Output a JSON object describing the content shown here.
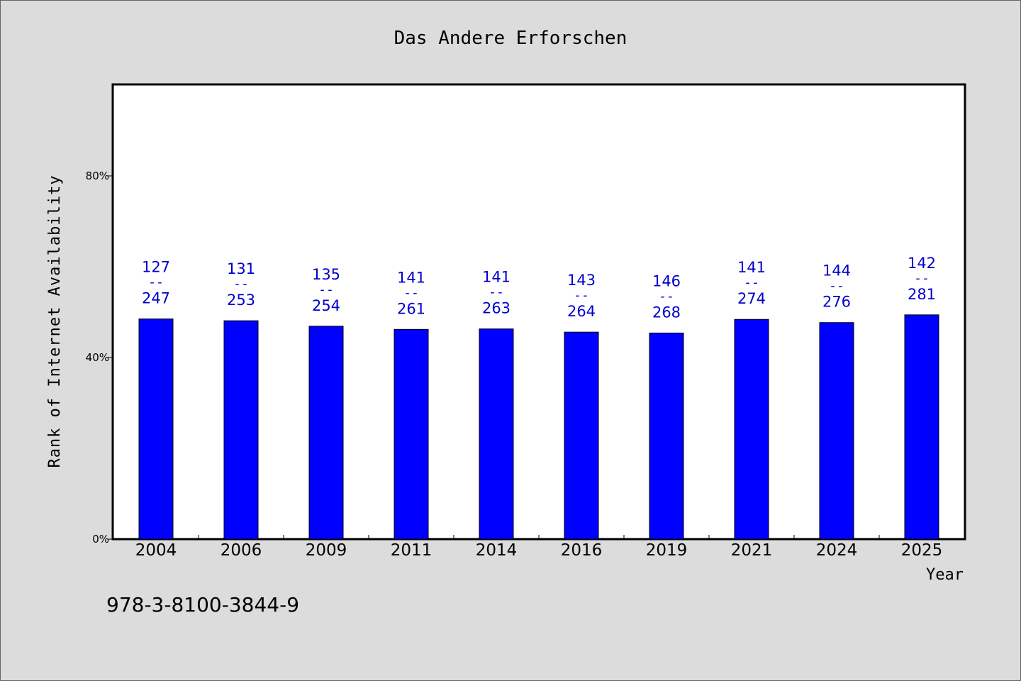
{
  "chart_data": {
    "type": "bar",
    "title": "Das Andere Erforschen",
    "xlabel": "Year",
    "ylabel": "Rank of Internet Availability",
    "categories": [
      "2004",
      "2006",
      "2009",
      "2011",
      "2014",
      "2016",
      "2019",
      "2021",
      "2024",
      "2025"
    ],
    "values": [
      48.5,
      48.1,
      46.9,
      46.2,
      46.3,
      45.6,
      45.4,
      48.4,
      47.7,
      49.4
    ],
    "labels": [
      {
        "rank": "127",
        "total": "247"
      },
      {
        "rank": "131",
        "total": "253"
      },
      {
        "rank": "135",
        "total": "254"
      },
      {
        "rank": "141",
        "total": "261"
      },
      {
        "rank": "141",
        "total": "263"
      },
      {
        "rank": "143",
        "total": "264"
      },
      {
        "rank": "146",
        "total": "268"
      },
      {
        "rank": "141",
        "total": "274"
      },
      {
        "rank": "144",
        "total": "276"
      },
      {
        "rank": "142",
        "total": "281"
      }
    ],
    "label_separator": "--",
    "ylim": [
      0,
      100
    ],
    "yticks": [
      0,
      40,
      80
    ],
    "ytick_labels": [
      "0%",
      "40%",
      "80%"
    ],
    "grid": false,
    "bar_color": "#0000ff",
    "label_color": "#0000cc"
  },
  "footer_text": "978-3-8100-3844-9"
}
